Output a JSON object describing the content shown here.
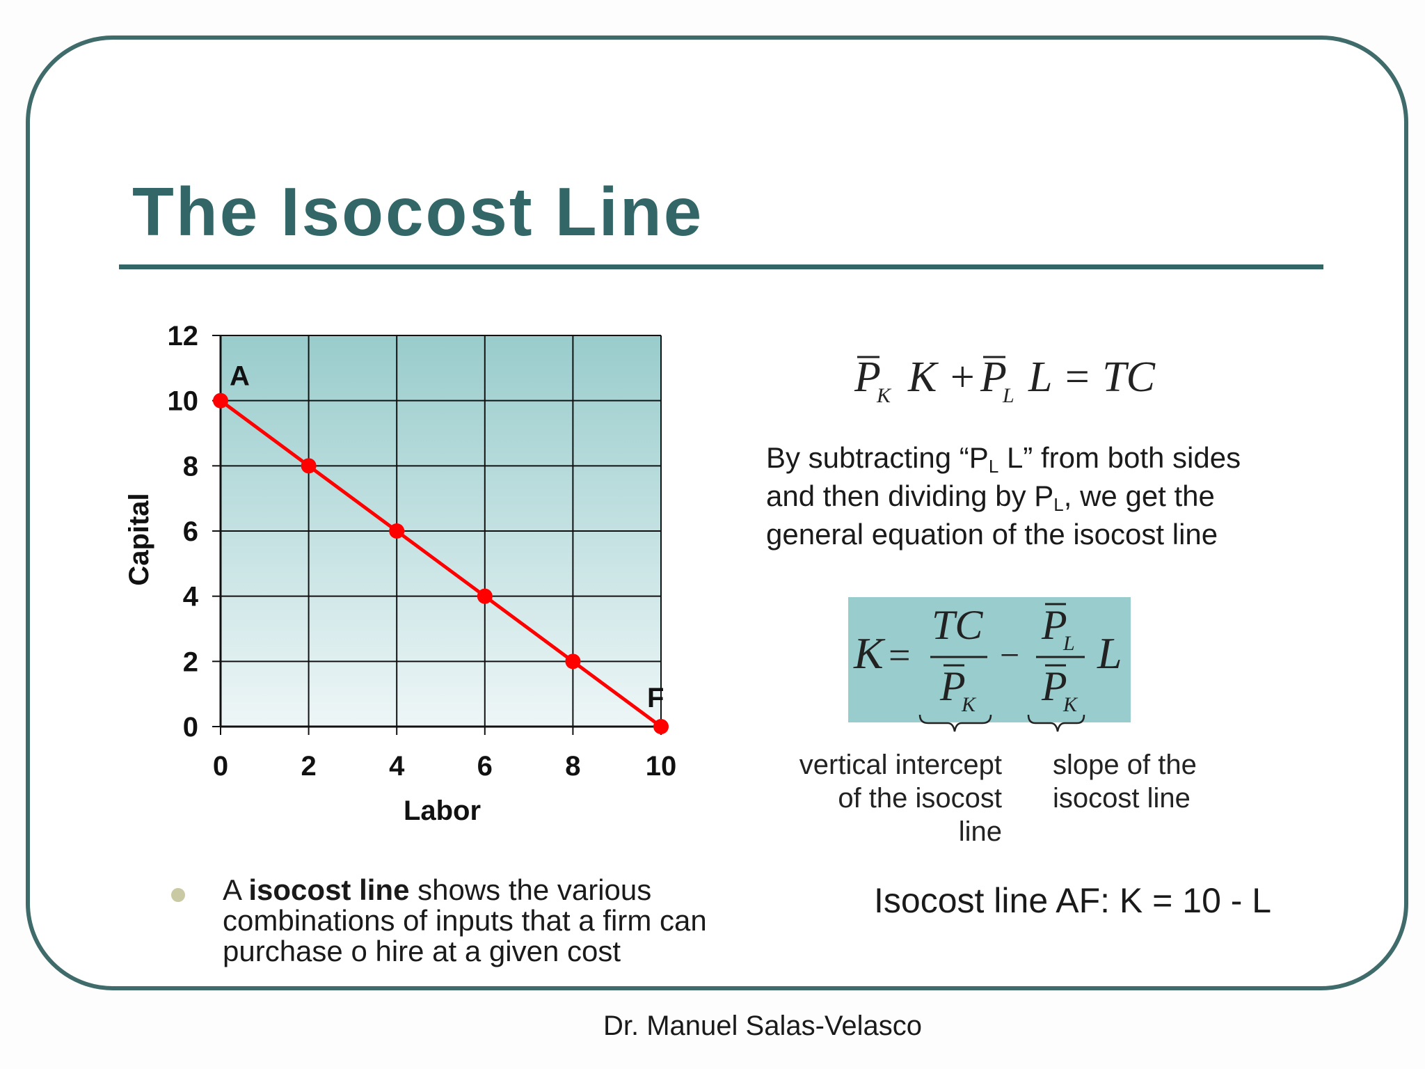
{
  "slide": {
    "title": "The Isocost Line",
    "author": "Dr. Manuel Salas-Velasco",
    "colors": {
      "title": "#336666",
      "frame": "#3f6b6a",
      "line": "#ff0000",
      "equation_box": "#99cccc"
    }
  },
  "description": {
    "line1_a": "By subtracting “P",
    "line1_sub": "L",
    "line1_b": " L” from both sides",
    "line2_a": "and then dividing by P",
    "line2_sub": "L",
    "line2_b": ", we get the",
    "line3": "general equation of the isocost line"
  },
  "equation": {
    "top_lhs": "K + ",
    "top_rhs": "L = TC",
    "p_symbol": "P",
    "sub_k": "K",
    "sub_l": "L",
    "k_symbol": "K",
    "equals": "=",
    "tc": "TC",
    "minus": "−",
    "l_symbol": "L"
  },
  "captions": {
    "intercept_1": "vertical intercept",
    "intercept_2": "of the isocost",
    "intercept_3": "line",
    "slope_1": "slope of the",
    "slope_2": "isocost line"
  },
  "bullet": {
    "prefix": "A ",
    "bold": "isocost line",
    "rest_1": " shows the various",
    "line2": "combinations of inputs that a firm can",
    "line3": "purchase o hire at a given cost"
  },
  "isocost_af": "Isocost line AF: K = 10 - L",
  "chart_data": {
    "type": "line",
    "title": "",
    "xlabel": "Labor",
    "ylabel": "Capital",
    "xlim": [
      0,
      10
    ],
    "ylim": [
      0,
      12
    ],
    "xticks": [
      0,
      2,
      4,
      6,
      8,
      10
    ],
    "yticks": [
      0,
      2,
      4,
      6,
      8,
      10,
      12
    ],
    "grid": true,
    "series": [
      {
        "x": [
          0,
          2,
          4,
          6,
          8,
          10
        ],
        "y": [
          10,
          8,
          6,
          4,
          2,
          0
        ],
        "color": "#ff0000"
      }
    ],
    "annotations": [
      {
        "text": "A",
        "x": 0,
        "y": 10
      },
      {
        "text": "F",
        "x": 10,
        "y": 0
      }
    ]
  }
}
